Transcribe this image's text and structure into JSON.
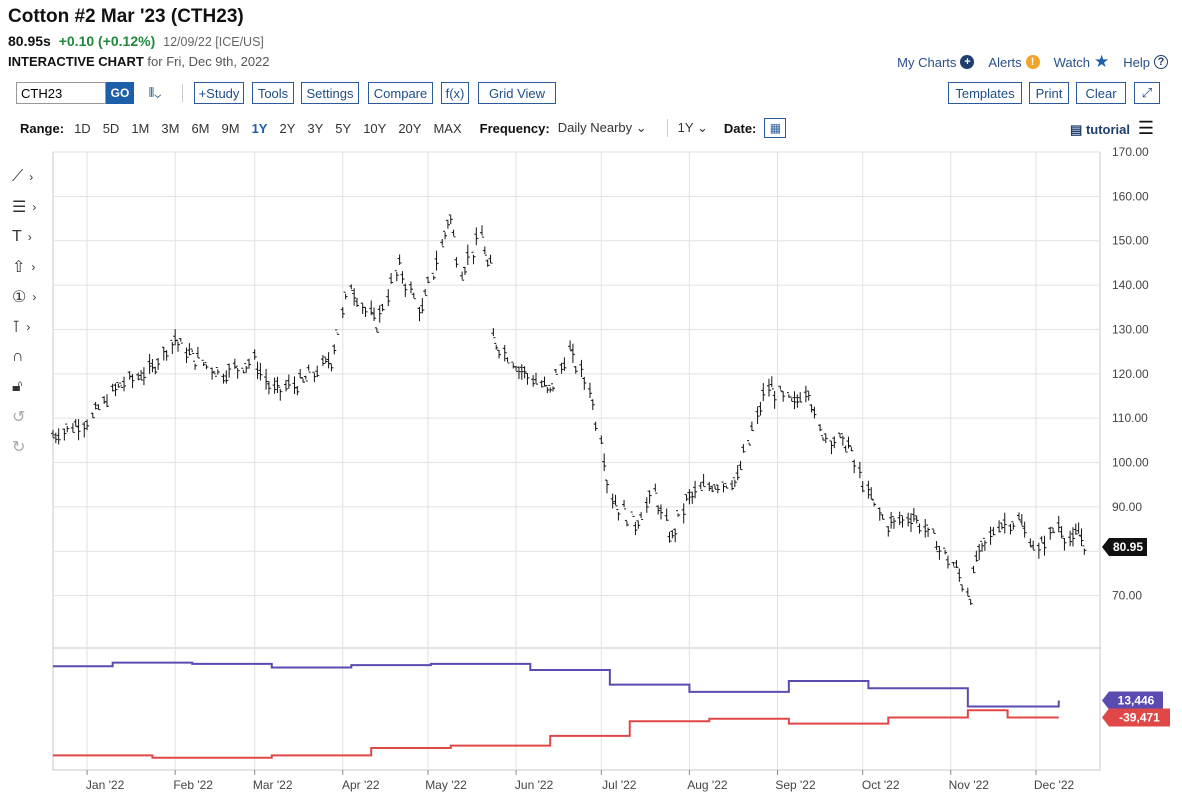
{
  "header": {
    "title": "Cotton #2 Mar '23 (CTH23)",
    "last": "80.95s",
    "change": "+0.10 (+0.12%)",
    "meta": "12/09/22 [ICE/US]",
    "interactive_label": "INTERACTIVE CHART",
    "for_date": "for Fri, Dec 9th, 2022"
  },
  "toplinks": {
    "my_charts": "My Charts",
    "alerts": "Alerts",
    "watch": "Watch",
    "help": "Help"
  },
  "toolbar": {
    "symbol": "CTH23",
    "go": "GO",
    "study": "+Study",
    "tools": "Tools",
    "settings": "Settings",
    "compare": "Compare",
    "fx": "f(x)",
    "grid_view": "Grid View",
    "templates": "Templates",
    "print": "Print",
    "clear": "Clear"
  },
  "range": {
    "label": "Range:",
    "options": [
      "1D",
      "5D",
      "1M",
      "3M",
      "6M",
      "9M",
      "1Y",
      "2Y",
      "3Y",
      "5Y",
      "10Y",
      "20Y",
      "MAX"
    ],
    "active": "1Y",
    "frequency_label": "Frequency:",
    "frequency_value": "Daily Nearby",
    "period_value": "1Y",
    "date_label": "Date:",
    "tutorial": "tutorial"
  },
  "colors": {
    "accent": "#1d5fa8",
    "up": "#1f8a3b",
    "commercials": "#5a4bb0",
    "specs": "#e04848",
    "price": "#111111"
  },
  "chart_data": {
    "type": "ohlc",
    "x_labels": [
      "Jan '22",
      "Feb '22",
      "Mar '22",
      "Apr '22",
      "May '22",
      "Jun '22",
      "Jul '22",
      "Aug '22",
      "Sep '22",
      "Oct '22",
      "Nov '22",
      "Dec '22"
    ],
    "price_axis": {
      "ticks": [
        "70.00",
        "80.00",
        "90.00",
        "100.00",
        "110.00",
        "120.00",
        "130.00",
        "140.00",
        "150.00",
        "160.00",
        "170.00"
      ],
      "ylim": [
        60,
        170
      ]
    },
    "last_price_label": "80.95",
    "price_series": [
      {
        "date": "2021-12-20",
        "close": 106
      },
      {
        "date": "2022-01-03",
        "close": 110
      },
      {
        "date": "2022-01-12",
        "close": 117
      },
      {
        "date": "2022-01-24",
        "close": 121
      },
      {
        "date": "2022-02-01",
        "close": 128
      },
      {
        "date": "2022-02-07",
        "close": 124
      },
      {
        "date": "2022-02-18",
        "close": 120
      },
      {
        "date": "2022-03-01",
        "close": 123
      },
      {
        "date": "2022-03-08",
        "close": 116
      },
      {
        "date": "2022-03-18",
        "close": 118
      },
      {
        "date": "2022-03-28",
        "close": 123
      },
      {
        "date": "2022-04-04",
        "close": 140
      },
      {
        "date": "2022-04-13",
        "close": 131
      },
      {
        "date": "2022-04-21",
        "close": 144
      },
      {
        "date": "2022-04-29",
        "close": 134
      },
      {
        "date": "2022-05-09",
        "close": 155
      },
      {
        "date": "2022-05-13",
        "close": 143
      },
      {
        "date": "2022-05-20",
        "close": 151
      },
      {
        "date": "2022-05-23",
        "close": 144
      },
      {
        "date": "2022-05-24",
        "close": 128
      },
      {
        "date": "2022-06-03",
        "close": 121
      },
      {
        "date": "2022-06-13",
        "close": 116
      },
      {
        "date": "2022-06-20",
        "close": 125
      },
      {
        "date": "2022-06-27",
        "close": 117
      },
      {
        "date": "2022-07-01",
        "close": 106
      },
      {
        "date": "2022-07-05",
        "close": 92
      },
      {
        "date": "2022-07-13",
        "close": 86
      },
      {
        "date": "2022-07-20",
        "close": 93
      },
      {
        "date": "2022-07-26",
        "close": 83
      },
      {
        "date": "2022-08-01",
        "close": 92
      },
      {
        "date": "2022-08-09",
        "close": 95
      },
      {
        "date": "2022-08-18",
        "close": 96
      },
      {
        "date": "2022-08-25",
        "close": 110
      },
      {
        "date": "2022-08-29",
        "close": 117
      },
      {
        "date": "2022-09-07",
        "close": 113
      },
      {
        "date": "2022-09-12",
        "close": 117
      },
      {
        "date": "2022-09-16",
        "close": 107
      },
      {
        "date": "2022-09-26",
        "close": 104
      },
      {
        "date": "2022-10-03",
        "close": 93
      },
      {
        "date": "2022-10-10",
        "close": 86
      },
      {
        "date": "2022-10-19",
        "close": 88
      },
      {
        "date": "2022-10-26",
        "close": 83
      },
      {
        "date": "2022-11-03",
        "close": 76
      },
      {
        "date": "2022-11-08",
        "close": 70
      },
      {
        "date": "2022-11-11",
        "close": 79
      },
      {
        "date": "2022-11-18",
        "close": 86
      },
      {
        "date": "2022-11-25",
        "close": 87
      },
      {
        "date": "2022-12-02",
        "close": 80
      },
      {
        "date": "2022-12-09",
        "close": 86
      },
      {
        "date": "2022-12-14",
        "close": 82
      },
      {
        "date": "2022-12-16",
        "close": 84
      },
      {
        "date": "2022-12-20",
        "close": 81
      }
    ],
    "cot_series": [
      {
        "name": "",
        "color": "#5a4bb0",
        "last_label": "13,446",
        "points": [
          [
            "2021-12-20",
            0.15
          ],
          [
            "2022-01-10",
            0.12
          ],
          [
            "2022-02-07",
            0.13
          ],
          [
            "2022-03-07",
            0.16
          ],
          [
            "2022-04-04",
            0.14
          ],
          [
            "2022-05-02",
            0.13
          ],
          [
            "2022-06-06",
            0.18
          ],
          [
            "2022-07-04",
            0.3
          ],
          [
            "2022-08-01",
            0.36
          ],
          [
            "2022-09-05",
            0.27
          ],
          [
            "2022-10-03",
            0.33
          ],
          [
            "2022-11-07",
            0.48
          ],
          [
            "2022-12-09",
            0.43
          ]
        ]
      },
      {
        "name": "",
        "color": "#e04848",
        "last_label": "-39,471",
        "points": [
          [
            "2021-12-20",
            0.88
          ],
          [
            "2022-01-24",
            0.9
          ],
          [
            "2022-03-07",
            0.88
          ],
          [
            "2022-04-11",
            0.82
          ],
          [
            "2022-05-09",
            0.8
          ],
          [
            "2022-06-13",
            0.72
          ],
          [
            "2022-07-11",
            0.6
          ],
          [
            "2022-08-08",
            0.58
          ],
          [
            "2022-09-05",
            0.62
          ],
          [
            "2022-10-10",
            0.57
          ],
          [
            "2022-11-07",
            0.51
          ],
          [
            "2022-11-21",
            0.57
          ],
          [
            "2022-12-09",
            0.57
          ]
        ]
      }
    ]
  }
}
